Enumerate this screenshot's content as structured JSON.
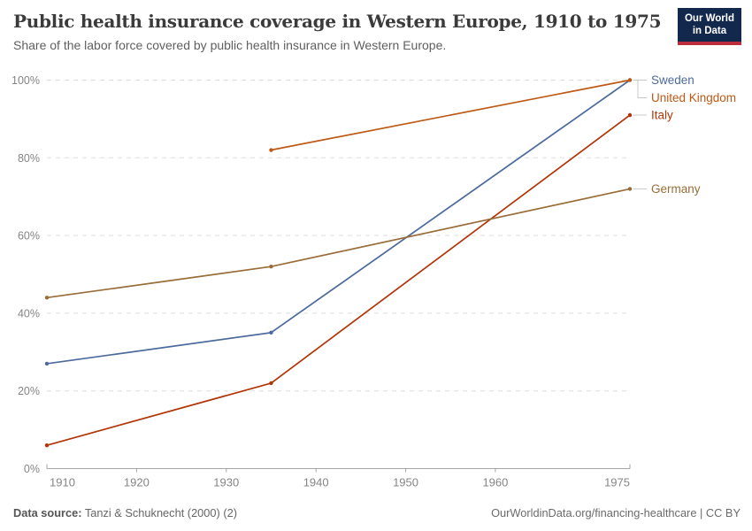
{
  "header": {
    "title": "Public health insurance coverage in Western Europe, 1910 to 1975",
    "subtitle": "Share of the labor force covered by public health insurance in Western Europe.",
    "logo": {
      "line1": "Our World",
      "line2": "in Data",
      "bg_color": "#12294d",
      "accent_color": "#bc2d3b"
    }
  },
  "footer": {
    "source_label": "Data source:",
    "source_value": " Tanzi & Schuknecht (2000) (2)",
    "link": "OurWorldinData.org/financing-healthcare | CC BY"
  },
  "chart_data": {
    "type": "line",
    "title": "Public health insurance coverage in Western Europe, 1910 to 1975",
    "xlabel": "",
    "ylabel": "",
    "xlim": [
      1910,
      1975
    ],
    "ylim": [
      0,
      100
    ],
    "x_ticks": [
      1910,
      1920,
      1930,
      1940,
      1950,
      1960,
      1975
    ],
    "y_ticks": [
      0,
      20,
      40,
      60,
      80,
      100
    ],
    "y_tick_suffix": "%",
    "grid": "horizontal-dashed",
    "legend_position": "right-of-line-end",
    "colors": {
      "axis": "#a5a5a5",
      "gridline": "#dedede",
      "connector": "#c8c8c8"
    },
    "series": [
      {
        "name": "Sweden",
        "color": "#4C6A9C",
        "points": [
          [
            1910,
            27
          ],
          [
            1935,
            35
          ],
          [
            1975,
            100
          ]
        ]
      },
      {
        "name": "United Kingdom",
        "color": "#BE5915",
        "points": [
          [
            1935,
            82
          ],
          [
            1975,
            100
          ]
        ]
      },
      {
        "name": "Italy",
        "color": "#B13507",
        "points": [
          [
            1910,
            6
          ],
          [
            1935,
            22
          ],
          [
            1975,
            91
          ]
        ]
      },
      {
        "name": "Germany",
        "color": "#996D39",
        "points": [
          [
            1910,
            44
          ],
          [
            1935,
            52
          ],
          [
            1975,
            72
          ]
        ]
      }
    ]
  }
}
